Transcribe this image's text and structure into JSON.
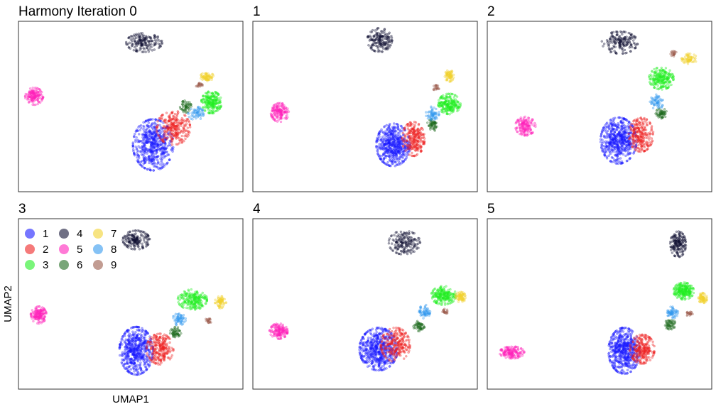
{
  "chart_data": {
    "type": "scatter",
    "xlabel": "UMAP1",
    "ylabel": "UMAP2",
    "grid": false,
    "legend": {
      "placement": "top-left of panel 3",
      "entries": [
        {
          "label": "1",
          "color": "#1a1aff"
        },
        {
          "label": "2",
          "color": "#ee2222"
        },
        {
          "label": "3",
          "color": "#22ee22"
        },
        {
          "label": "4",
          "color": "#111133"
        },
        {
          "label": "5",
          "color": "#ff22bb"
        },
        {
          "label": "6",
          "color": "#1f6b1f"
        },
        {
          "label": "7",
          "color": "#f2d22e"
        },
        {
          "label": "8",
          "color": "#3399ee"
        },
        {
          "label": "9",
          "color": "#9a5a4a"
        }
      ]
    },
    "panels": [
      {
        "title": "Harmony Iteration 0",
        "clusters": [
          {
            "label": "1",
            "cx": 0.2,
            "cy": -0.45,
            "rx": 0.18,
            "ry": 0.3,
            "n": 550
          },
          {
            "label": "2",
            "cx": 0.38,
            "cy": -0.25,
            "rx": 0.15,
            "ry": 0.2,
            "n": 260
          },
          {
            "label": "3",
            "cx": 0.72,
            "cy": 0.05,
            "rx": 0.09,
            "ry": 0.13,
            "n": 220
          },
          {
            "label": "4",
            "cx": 0.12,
            "cy": 0.75,
            "rx": 0.16,
            "ry": 0.11,
            "n": 170
          },
          {
            "label": "5",
            "cx": -0.86,
            "cy": 0.12,
            "rx": 0.08,
            "ry": 0.1,
            "n": 150
          },
          {
            "label": "6",
            "cx": 0.49,
            "cy": 0.0,
            "rx": 0.05,
            "ry": 0.07,
            "n": 55
          },
          {
            "label": "7",
            "cx": 0.68,
            "cy": 0.35,
            "rx": 0.06,
            "ry": 0.05,
            "n": 70
          },
          {
            "label": "8",
            "cx": 0.58,
            "cy": -0.08,
            "rx": 0.07,
            "ry": 0.08,
            "n": 60
          },
          {
            "label": "9",
            "cx": 0.61,
            "cy": 0.25,
            "rx": 0.03,
            "ry": 0.03,
            "n": 20
          }
        ]
      },
      {
        "title": "1",
        "clusters": [
          {
            "label": "1",
            "cx": 0.25,
            "cy": -0.45,
            "rx": 0.15,
            "ry": 0.25,
            "n": 520
          },
          {
            "label": "2",
            "cx": 0.43,
            "cy": -0.38,
            "rx": 0.1,
            "ry": 0.2,
            "n": 240
          },
          {
            "label": "3",
            "cx": 0.75,
            "cy": 0.03,
            "rx": 0.1,
            "ry": 0.12,
            "n": 220
          },
          {
            "label": "4",
            "cx": 0.13,
            "cy": 0.78,
            "rx": 0.11,
            "ry": 0.14,
            "n": 170
          },
          {
            "label": "5",
            "cx": -0.76,
            "cy": -0.07,
            "rx": 0.08,
            "ry": 0.11,
            "n": 150
          },
          {
            "label": "6",
            "cx": 0.6,
            "cy": -0.22,
            "rx": 0.05,
            "ry": 0.07,
            "n": 55
          },
          {
            "label": "7",
            "cx": 0.75,
            "cy": 0.36,
            "rx": 0.04,
            "ry": 0.07,
            "n": 70
          },
          {
            "label": "8",
            "cx": 0.6,
            "cy": -0.08,
            "rx": 0.06,
            "ry": 0.08,
            "n": 60
          },
          {
            "label": "9",
            "cx": 0.63,
            "cy": 0.22,
            "rx": 0.03,
            "ry": 0.03,
            "n": 20
          }
        ]
      },
      {
        "title": "2",
        "clusters": [
          {
            "label": "1",
            "cx": 0.17,
            "cy": -0.4,
            "rx": 0.16,
            "ry": 0.27,
            "n": 540
          },
          {
            "label": "2",
            "cx": 0.37,
            "cy": -0.33,
            "rx": 0.11,
            "ry": 0.2,
            "n": 240
          },
          {
            "label": "3",
            "cx": 0.55,
            "cy": 0.33,
            "rx": 0.11,
            "ry": 0.13,
            "n": 220
          },
          {
            "label": "4",
            "cx": 0.18,
            "cy": 0.75,
            "rx": 0.16,
            "ry": 0.13,
            "n": 170
          },
          {
            "label": "5",
            "cx": -0.66,
            "cy": -0.23,
            "rx": 0.09,
            "ry": 0.11,
            "n": 150
          },
          {
            "label": "6",
            "cx": 0.55,
            "cy": -0.08,
            "rx": 0.05,
            "ry": 0.06,
            "n": 55
          },
          {
            "label": "7",
            "cx": 0.8,
            "cy": 0.56,
            "rx": 0.07,
            "ry": 0.06,
            "n": 70
          },
          {
            "label": "8",
            "cx": 0.51,
            "cy": 0.05,
            "rx": 0.06,
            "ry": 0.09,
            "n": 60
          },
          {
            "label": "9",
            "cx": 0.66,
            "cy": 0.62,
            "rx": 0.03,
            "ry": 0.03,
            "n": 20
          }
        ]
      },
      {
        "title": "3",
        "clusters": [
          {
            "label": "1",
            "cx": 0.05,
            "cy": -0.55,
            "rx": 0.15,
            "ry": 0.28,
            "n": 540
          },
          {
            "label": "2",
            "cx": 0.26,
            "cy": -0.53,
            "rx": 0.12,
            "ry": 0.18,
            "n": 240
          },
          {
            "label": "3",
            "cx": 0.55,
            "cy": 0.05,
            "rx": 0.13,
            "ry": 0.12,
            "n": 220
          },
          {
            "label": "4",
            "cx": 0.05,
            "cy": 0.75,
            "rx": 0.12,
            "ry": 0.11,
            "n": 170
          },
          {
            "label": "5",
            "cx": -0.82,
            "cy": -0.13,
            "rx": 0.07,
            "ry": 0.1,
            "n": 150
          },
          {
            "label": "6",
            "cx": 0.4,
            "cy": -0.33,
            "rx": 0.05,
            "ry": 0.06,
            "n": 55
          },
          {
            "label": "7",
            "cx": 0.8,
            "cy": 0.02,
            "rx": 0.05,
            "ry": 0.07,
            "n": 70
          },
          {
            "label": "8",
            "cx": 0.43,
            "cy": -0.18,
            "rx": 0.06,
            "ry": 0.07,
            "n": 60
          },
          {
            "label": "9",
            "cx": 0.69,
            "cy": -0.2,
            "rx": 0.03,
            "ry": 0.03,
            "n": 20
          }
        ]
      },
      {
        "title": "4",
        "clusters": [
          {
            "label": "1",
            "cx": 0.12,
            "cy": -0.53,
            "rx": 0.17,
            "ry": 0.25,
            "n": 540
          },
          {
            "label": "2",
            "cx": 0.27,
            "cy": -0.48,
            "rx": 0.13,
            "ry": 0.2,
            "n": 240
          },
          {
            "label": "3",
            "cx": 0.7,
            "cy": 0.1,
            "rx": 0.11,
            "ry": 0.11,
            "n": 220
          },
          {
            "label": "4",
            "cx": 0.35,
            "cy": 0.72,
            "rx": 0.14,
            "ry": 0.14,
            "n": 170
          },
          {
            "label": "5",
            "cx": -0.77,
            "cy": -0.32,
            "rx": 0.08,
            "ry": 0.09,
            "n": 150
          },
          {
            "label": "6",
            "cx": 0.48,
            "cy": -0.26,
            "rx": 0.05,
            "ry": 0.06,
            "n": 55
          },
          {
            "label": "7",
            "cx": 0.85,
            "cy": 0.08,
            "rx": 0.05,
            "ry": 0.06,
            "n": 70
          },
          {
            "label": "8",
            "cx": 0.53,
            "cy": -0.09,
            "rx": 0.05,
            "ry": 0.08,
            "n": 60
          },
          {
            "label": "9",
            "cx": 0.71,
            "cy": -0.09,
            "rx": 0.03,
            "ry": 0.03,
            "n": 20
          }
        ]
      },
      {
        "title": "5",
        "clusters": [
          {
            "label": "1",
            "cx": 0.22,
            "cy": -0.55,
            "rx": 0.14,
            "ry": 0.27,
            "n": 540
          },
          {
            "label": "2",
            "cx": 0.38,
            "cy": -0.53,
            "rx": 0.11,
            "ry": 0.17,
            "n": 240
          },
          {
            "label": "3",
            "cx": 0.75,
            "cy": 0.15,
            "rx": 0.09,
            "ry": 0.1,
            "n": 220
          },
          {
            "label": "4",
            "cx": 0.7,
            "cy": 0.7,
            "rx": 0.07,
            "ry": 0.15,
            "n": 170
          },
          {
            "label": "5",
            "cx": -0.78,
            "cy": -0.57,
            "rx": 0.11,
            "ry": 0.07,
            "n": 150
          },
          {
            "label": "6",
            "cx": 0.63,
            "cy": -0.24,
            "rx": 0.05,
            "ry": 0.06,
            "n": 55
          },
          {
            "label": "7",
            "cx": 0.92,
            "cy": 0.07,
            "rx": 0.04,
            "ry": 0.06,
            "n": 70
          },
          {
            "label": "8",
            "cx": 0.65,
            "cy": -0.1,
            "rx": 0.05,
            "ry": 0.07,
            "n": 60
          },
          {
            "label": "9",
            "cx": 0.8,
            "cy": -0.12,
            "rx": 0.03,
            "ry": 0.03,
            "n": 20
          }
        ]
      }
    ]
  }
}
